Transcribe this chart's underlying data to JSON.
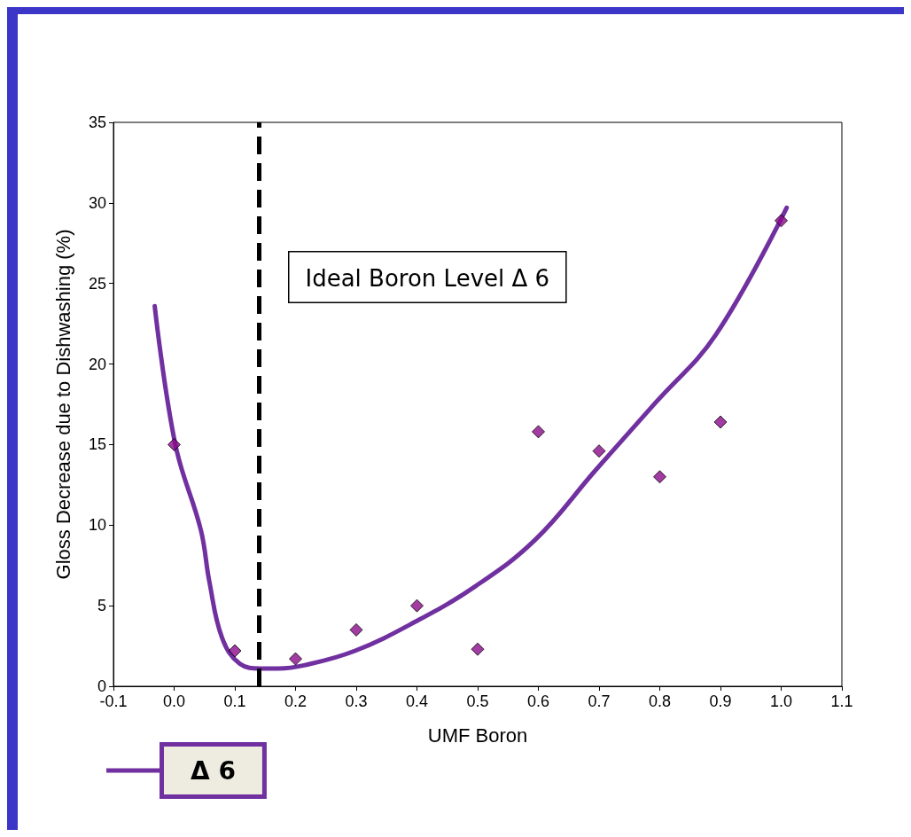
{
  "chart_data": {
    "type": "scatter",
    "xlabel": "UMF Boron",
    "ylabel": "Gloss Decrease due to Dishwashing (%)",
    "xlim": [
      -0.1,
      1.1
    ],
    "xticks": [
      -0.1,
      {
        "value": 0,
        "label": "0.0"
      },
      0.1,
      0.2,
      0.3,
      0.4,
      0.5,
      0.6,
      0.7,
      0.8,
      0.9,
      {
        "value": 1,
        "label": "1.0"
      },
      1.1
    ],
    "ylim": [
      0,
      35
    ],
    "yticks": [
      0,
      5,
      10,
      15,
      20,
      25,
      30,
      35
    ],
    "grid": false,
    "legend": "bottom left",
    "marker": "diamond",
    "series": [
      {
        "color": "#8b0a8b",
        "x": [
          0,
          0.1,
          0.2,
          0.3,
          0.4,
          0.5,
          0.6,
          0.7,
          0.8,
          0.9,
          1.0
        ],
        "values": [
          15,
          2.2,
          1.7,
          3.5,
          5,
          2.3,
          15.8,
          14.6,
          13,
          16.4,
          28.9
        ]
      },
      {
        "type": "line",
        "name": "Δ 6",
        "color": "#7030a0",
        "marker": "none",
        "x": [
          -0.032,
          0.002,
          0.044,
          0.058,
          0.079,
          0.108,
          0.143,
          0.171,
          0.214,
          0.298,
          0.397,
          0.496,
          0.595,
          0.694,
          0.793,
          0.892,
          1.009
        ],
        "values": [
          23.6,
          15,
          9.7,
          6.5,
          3,
          1.4,
          1.1,
          1.1,
          1.3,
          2.2,
          4,
          6.2,
          9.1,
          13.4,
          17.6,
          21.8,
          29.7
        ]
      }
    ],
    "ref_lines": [
      {
        "axis": "x",
        "value": 0.144,
        "color": "#000000",
        "line_style": "dashed"
      }
    ],
    "annotations": [
      "Ideal Boron Level Δ 6"
    ]
  }
}
